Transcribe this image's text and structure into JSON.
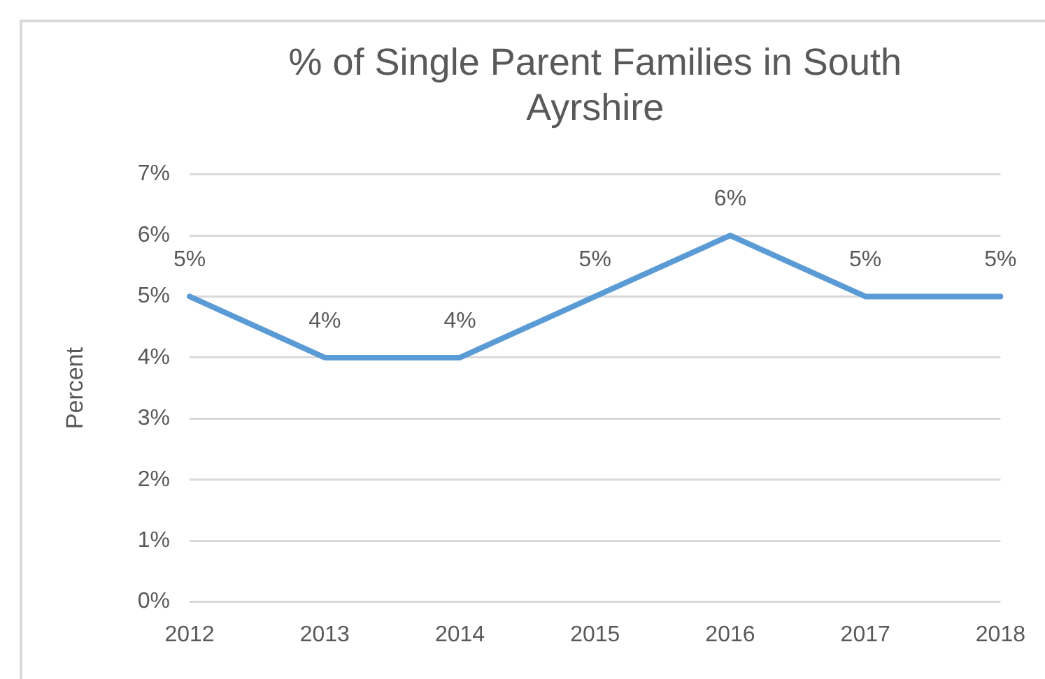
{
  "chart_data": {
    "type": "line",
    "title": "% of Single Parent Families in South Ayrshire",
    "ylabel": "Percent",
    "categories": [
      "2012",
      "2013",
      "2014",
      "2015",
      "2016",
      "2017",
      "2018"
    ],
    "series": [
      {
        "color": "#5b9bd5",
        "values": [
          5,
          4,
          4,
          5,
          6,
          5,
          5
        ],
        "value_labels": [
          "5%",
          "4%",
          "4%",
          "5%",
          "6%",
          "5%",
          "5%"
        ]
      }
    ],
    "ylim": [
      0,
      7
    ],
    "yticks": [
      {
        "value": 0,
        "label": "0%"
      },
      {
        "value": 1,
        "label": "1%"
      },
      {
        "value": 2,
        "label": "2%"
      },
      {
        "value": 3,
        "label": "3%"
      },
      {
        "value": 4,
        "label": "4%"
      },
      {
        "value": 5,
        "label": "5%"
      },
      {
        "value": 6,
        "label": "6%"
      },
      {
        "value": 7,
        "label": "7%"
      }
    ],
    "grid": "y",
    "legend": false,
    "marker": "none",
    "line_style": "solid"
  }
}
